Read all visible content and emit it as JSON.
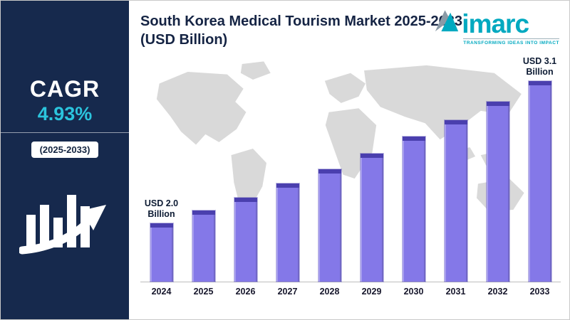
{
  "sidebar": {
    "cagr_label": "CAGR",
    "cagr_value": "4.93%",
    "period": "(2025-2033)",
    "bg_color": "#16294d",
    "accent_color": "#2bc4dd",
    "icon": "growth-bars-arrow-icon"
  },
  "header": {
    "title": "South Korea Medical Tourism Market 2025-2033 (USD Billion)"
  },
  "logo": {
    "name": "imarc",
    "tagline": "TRANSFORMING IDEAS INTO IMPACT",
    "color": "#00a9c0",
    "mark": "imarc-triangles-icon"
  },
  "chart_data": {
    "type": "bar",
    "title": "South Korea Medical Tourism Market 2025-2033 (USD Billion)",
    "categories": [
      "2024",
      "2025",
      "2026",
      "2027",
      "2028",
      "2029",
      "2030",
      "2031",
      "2032",
      "2033"
    ],
    "values": [
      2.0,
      2.1,
      2.2,
      2.31,
      2.42,
      2.54,
      2.67,
      2.8,
      2.94,
      3.1
    ],
    "unit": "USD Billion",
    "first_label": "USD 2.0\nBillion",
    "last_label": "USD 3.1\nBillion",
    "bar_color": "#8478e8",
    "bar_top_color": "#4a3fae",
    "xlabel": "",
    "ylabel": "",
    "ylim": [
      1.55,
      3.2
    ],
    "grid": false,
    "legend": "none",
    "background": "world-map-silhouette"
  }
}
